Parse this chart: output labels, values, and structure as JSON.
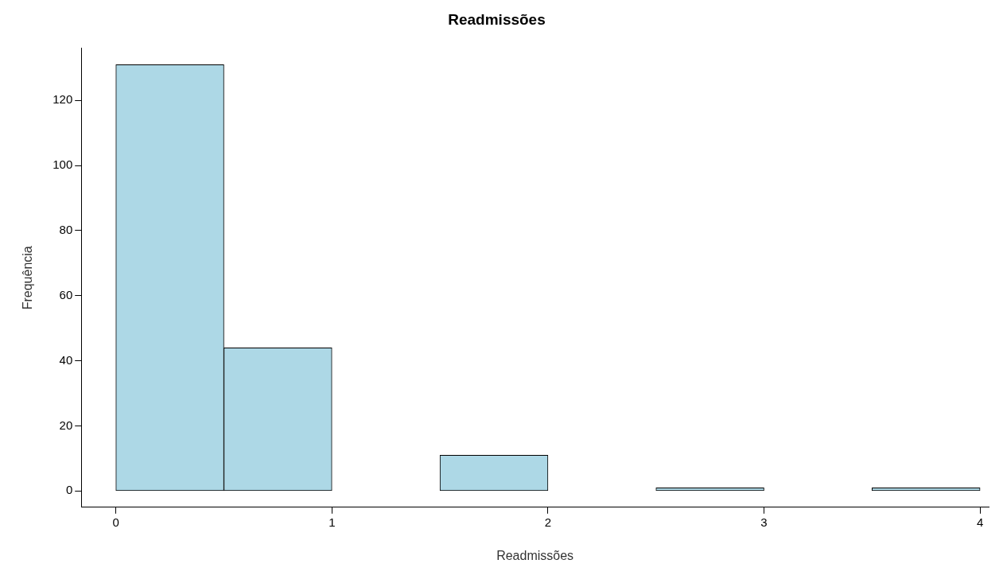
{
  "chart_data": {
    "type": "histogram",
    "title": "Readmissões",
    "xlabel": "Readmissões",
    "ylabel": "Frequência",
    "bins": [
      0,
      0.5,
      1,
      1.5,
      2,
      2.5,
      3,
      3.5,
      4
    ],
    "values": [
      131,
      44,
      0,
      11,
      0,
      1,
      0,
      1
    ],
    "color": "#add8e6",
    "xlim": [
      -0.16,
      4.04
    ],
    "xticks": [
      0,
      1,
      2,
      3,
      4
    ],
    "ylim": [
      -5,
      136
    ],
    "yticks": [
      0,
      20,
      40,
      60,
      80,
      100,
      120
    ],
    "grid": false,
    "legend": false
  }
}
